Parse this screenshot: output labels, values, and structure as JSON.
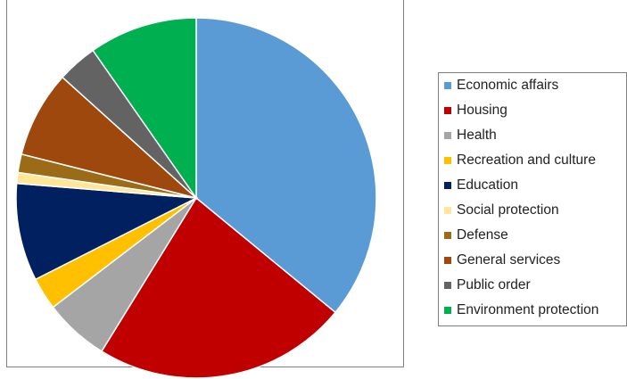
{
  "chart_data": {
    "type": "pie",
    "title": "",
    "legend_position": "right",
    "categories": [
      "Economic affairs",
      "Housing",
      "Health",
      "Recreation and culture",
      "Education",
      "Social protection",
      "Defense",
      "General services",
      "Public order",
      "Environment protection"
    ],
    "values": [
      37.0,
      23.5,
      6.0,
      3.0,
      9.0,
      1.0,
      1.7,
      8.0,
      3.7,
      10.0
    ],
    "unit": "percent (estimated)",
    "colors": [
      "#5b9bd5",
      "#c00000",
      "#a5a5a5",
      "#ffc000",
      "#002060",
      "#ffe699",
      "#9c6b17",
      "#9e480e",
      "#636363",
      "#00b050"
    ],
    "start_angle_deg": 0,
    "direction": "clockwise"
  }
}
